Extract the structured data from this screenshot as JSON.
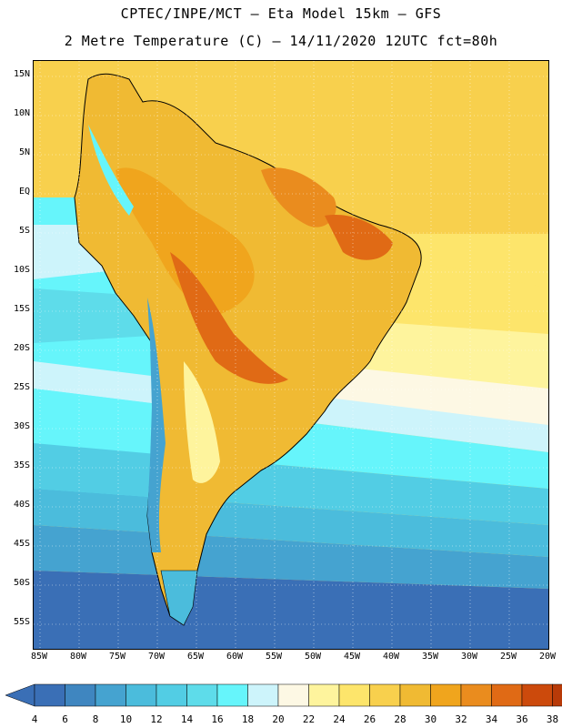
{
  "title": {
    "line1": "CPTEC/INPE/MCT –  Eta Model 15km – GFS",
    "line2": "2 Metre Temperature (C) – 14/11/2020 12UTC fct=80h"
  },
  "map": {
    "lat_labels": [
      "15N",
      "10N",
      "5N",
      "EQ",
      "5S",
      "10S",
      "15S",
      "20S",
      "25S",
      "30S",
      "35S",
      "40S",
      "45S",
      "50S",
      "55S"
    ],
    "lon_labels": [
      "85W",
      "80W",
      "75W",
      "70W",
      "65W",
      "60W",
      "55W",
      "50W",
      "45W",
      "40W",
      "35W",
      "30W",
      "25W",
      "20W"
    ]
  },
  "colorbar": {
    "labels": [
      "4",
      "6",
      "8",
      "10",
      "12",
      "14",
      "16",
      "18",
      "20",
      "22",
      "24",
      "26",
      "28",
      "30",
      "32",
      "34",
      "36",
      "38"
    ],
    "colors": [
      "#3a6fb6",
      "#3f86c0",
      "#45a3d0",
      "#4bbcdc",
      "#52cde4",
      "#5edcea",
      "#66f5fb",
      "#cdf4fb",
      "#fdf8e4",
      "#fef49d",
      "#fde56b",
      "#f8d04d",
      "#f0ba33",
      "#f0a51d",
      "#ea8c1e",
      "#e06a15",
      "#cc4a0c",
      "#b83a08"
    ],
    "low_color": "#3a6fb6",
    "high_color": "#b83a08"
  }
}
